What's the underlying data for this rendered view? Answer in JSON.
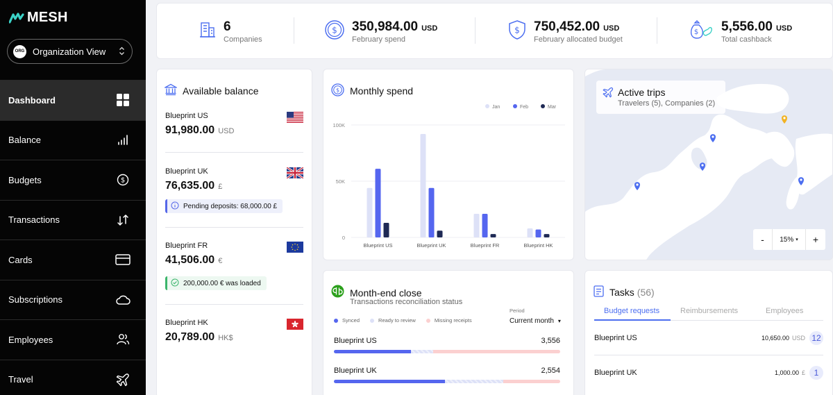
{
  "app": {
    "brand": "MESH",
    "org_view": "Organization View",
    "org_badge": "ORG"
  },
  "sidebar": {
    "items": [
      {
        "label": "Dashboard",
        "icon": "grid-icon",
        "active": true
      },
      {
        "label": "Balance",
        "icon": "bar-chart-icon"
      },
      {
        "label": "Budgets",
        "icon": "dollar-circle-icon"
      },
      {
        "label": "Transactions",
        "icon": "arrows-up-down-icon"
      },
      {
        "label": "Cards",
        "icon": "credit-card-icon"
      },
      {
        "label": "Subscriptions",
        "icon": "cloud-icon"
      },
      {
        "label": "Employees",
        "icon": "users-icon"
      },
      {
        "label": "Travel",
        "icon": "airplane-icon"
      }
    ]
  },
  "stats": [
    {
      "value": "6",
      "unit": "",
      "label": "Companies",
      "icon": "building-icon"
    },
    {
      "value": "350,984.00",
      "unit": "USD",
      "label": "February spend",
      "icon": "dollar-coin-icon"
    },
    {
      "value": "750,452.00",
      "unit": "USD",
      "label": "February allocated budget",
      "icon": "shield-dollar-icon"
    },
    {
      "value": "5,556.00",
      "unit": "USD",
      "label": "Total cashback",
      "icon": "money-bag-icon"
    }
  ],
  "balance": {
    "title": "Available balance",
    "items": [
      {
        "name": "Blueprint US",
        "amount": "91,980.00",
        "currency": "USD",
        "flag": "us-flag"
      },
      {
        "name": "Blueprint UK",
        "amount": "76,635.00",
        "currency": "£",
        "flag": "uk-flag",
        "note": "Pending deposits: 68,000.00 £"
      },
      {
        "name": "Blueprint FR",
        "amount": "41,506.00",
        "currency": "€",
        "flag": "eu-flag",
        "note": "200,000.00 € was loaded"
      },
      {
        "name": "Blueprint HK",
        "amount": "20,789.00",
        "currency": "HK$",
        "flag": "hk-flag"
      }
    ]
  },
  "spend": {
    "title": "Monthly spend"
  },
  "chart_data": {
    "type": "bar",
    "categories": [
      "Blueprint US",
      "Blueprint UK",
      "Blueprint FR",
      "Blueprint HK"
    ],
    "series": [
      {
        "name": "Jan",
        "values": [
          44,
          92,
          21,
          8
        ],
        "color": "#dde1f7"
      },
      {
        "name": "Feb",
        "values": [
          61,
          44,
          21,
          7
        ],
        "color": "#5566ef"
      },
      {
        "name": "Mar",
        "values": [
          13,
          6,
          3,
          3
        ],
        "color": "#1f2a55"
      }
    ],
    "ylim": [
      0,
      100
    ],
    "yticks": [
      0,
      50,
      100
    ],
    "ytick_labels": [
      "0",
      "50K",
      "100K"
    ],
    "grid": true,
    "legend": "top-right"
  },
  "trips": {
    "title": "Active trips",
    "subtitle": "Travelers (5), Companies (2)",
    "zoom": "15%",
    "zoom_out": "-",
    "zoom_in": "+"
  },
  "monthend": {
    "title": "Month-end close",
    "subtitle": "Transactions reconciliation status",
    "legend": [
      "Synced",
      "Ready to review",
      "Missing receipts"
    ],
    "period_label": "Period",
    "period_value": "Current month",
    "rows": [
      {
        "name": "Blueprint US",
        "count": "3,556",
        "synced": 0.34,
        "review": 0.1,
        "missing": 0.56
      },
      {
        "name": "Blueprint UK",
        "count": "2,554",
        "synced": 0.49,
        "review": 0.26,
        "missing": 0.25
      }
    ]
  },
  "tasks": {
    "title": "Tasks",
    "count": "(56)",
    "tabs": [
      "Budget requests",
      "Reimbursements",
      "Employees"
    ],
    "rows": [
      {
        "name": "Blueprint US",
        "amount": "10,650.00",
        "currency": "USD",
        "badge": "12"
      },
      {
        "name": "Blueprint UK",
        "amount": "1,000.00",
        "currency": "£",
        "badge": "1"
      }
    ]
  }
}
